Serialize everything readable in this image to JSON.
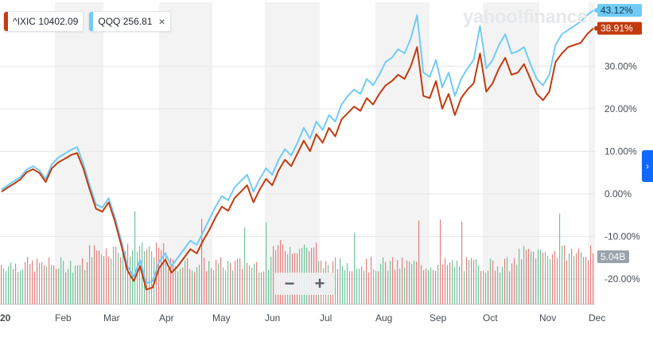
{
  "legend": [
    {
      "symbol": "^IXIC",
      "value": "10402.09",
      "color": "#c23b0e"
    },
    {
      "symbol": "QQQ",
      "value": "256.81",
      "color": "#71cbf5",
      "close_icon": "close-icon",
      "close_label": "×"
    }
  ],
  "watermark": "yahoo!finance",
  "zoom": {
    "minus_label": "−",
    "plus_label": "+"
  },
  "next_icon": "chevron-right-icon",
  "next_label": "›",
  "chart_data": {
    "type": "line",
    "x_ticks": [
      "20",
      "Feb",
      "Mar",
      "Apr",
      "May",
      "Jun",
      "Jul",
      "Aug",
      "Sep",
      "Oct",
      "Nov",
      "Dec"
    ],
    "y_ticks": [
      "30.00%",
      "20.00%",
      "10.00%",
      "0.00%",
      "-10.00%",
      "-20.00%"
    ],
    "y_tick_values": [
      30,
      20,
      10,
      0,
      -10,
      -20
    ],
    "ylim": [
      -26,
      45
    ],
    "grid": true,
    "legend_position": "top-left",
    "last_value_labels": [
      {
        "series": "QQQ",
        "text": "43.12%",
        "value": 43.12,
        "color": "#71cbf5"
      },
      {
        "series": "^IXIC",
        "text": "38.91%",
        "value": 38.91,
        "color": "#c23b0e"
      }
    ],
    "volume_label": "5.04B",
    "series": [
      {
        "name": "^IXIC",
        "color": "#c23b0e",
        "values": [
          0.5,
          1.5,
          2.4,
          3.4,
          5.1,
          5.8,
          4.9,
          2.8,
          6.0,
          7.4,
          8.2,
          9.1,
          9.6,
          5.9,
          1.0,
          -3.5,
          -4.2,
          -2.0,
          -6.5,
          -12.0,
          -18.0,
          -20.5,
          -17.0,
          -22.5,
          -22.0,
          -17.5,
          -15.5,
          -18.5,
          -17.0,
          -15.0,
          -13.0,
          -14.0,
          -11.0,
          -8.5,
          -5.5,
          -3.0,
          -4.0,
          -1.0,
          0.5,
          2.0,
          -2.0,
          1.0,
          3.5,
          2.0,
          5.5,
          8.0,
          6.5,
          9.5,
          12.5,
          10.0,
          14.0,
          12.0,
          15.5,
          13.5,
          17.5,
          19.0,
          20.5,
          19.5,
          22.5,
          21.0,
          23.5,
          25.5,
          26.5,
          28.0,
          27.0,
          30.0,
          34.5,
          23.0,
          22.5,
          26.5,
          20.0,
          23.5,
          18.5,
          22.5,
          24.5,
          26.0,
          33.0,
          24.0,
          26.0,
          29.5,
          32.0,
          28.0,
          28.5,
          30.5,
          27.0,
          23.5,
          22.0,
          24.0,
          31.0,
          33.0,
          34.5,
          35.0,
          35.5,
          37.5,
          38.91
        ]
      },
      {
        "name": "QQQ",
        "color": "#71cbf5",
        "values": [
          1.0,
          2.0,
          3.0,
          4.0,
          5.7,
          6.5,
          5.5,
          3.5,
          7.0,
          8.5,
          9.4,
          10.3,
          11.0,
          7.0,
          2.0,
          -2.5,
          -3.2,
          -1.0,
          -5.5,
          -11.0,
          -17.0,
          -19.5,
          -15.5,
          -21.0,
          -20.5,
          -16.0,
          -14.0,
          -17.0,
          -15.0,
          -13.0,
          -11.0,
          -12.0,
          -9.0,
          -6.0,
          -3.0,
          -0.5,
          -1.5,
          1.5,
          3.0,
          4.5,
          0.5,
          3.5,
          6.0,
          4.5,
          8.0,
          10.5,
          9.0,
          12.0,
          15.5,
          13.0,
          17.0,
          15.0,
          18.5,
          17.0,
          21.0,
          23.0,
          24.5,
          23.5,
          27.0,
          25.5,
          28.0,
          31.0,
          32.0,
          34.0,
          33.0,
          36.5,
          42.0,
          28.5,
          27.5,
          31.5,
          25.0,
          28.5,
          23.0,
          27.0,
          29.5,
          31.5,
          39.5,
          29.5,
          31.5,
          35.0,
          37.5,
          33.0,
          33.5,
          34.5,
          30.5,
          27.0,
          25.5,
          28.0,
          35.0,
          37.5,
          38.5,
          39.5,
          40.5,
          42.0,
          43.12
        ]
      }
    ]
  }
}
